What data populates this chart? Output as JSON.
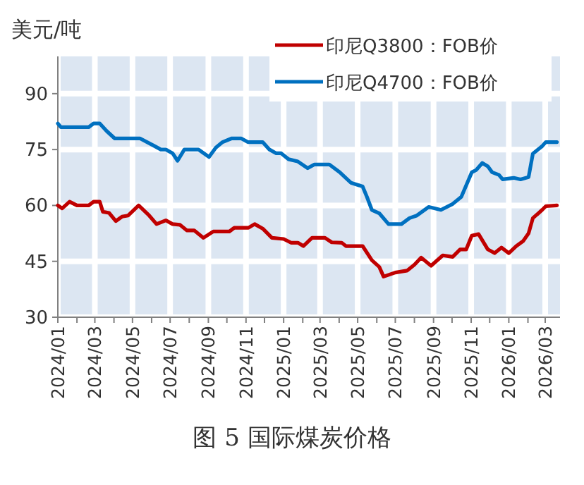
{
  "chart_data": {
    "type": "line",
    "ylabel": "美元/吨",
    "annotations": [
      "图 5 国际煤炭价格"
    ],
    "xlim": [
      "2024-01-01",
      "2026-03-25"
    ],
    "ylim": [
      30,
      100
    ],
    "yticks": [
      30,
      45,
      60,
      75,
      90
    ],
    "xticks": [
      {
        "value": "2024-01-01",
        "label": "2024/01"
      },
      {
        "value": "2024-02-01",
        "label": null
      },
      {
        "value": "2024-03-01",
        "label": "2024/03"
      },
      {
        "value": "2024-04-01",
        "label": null
      },
      {
        "value": "2024-05-01",
        "label": "2024/05"
      },
      {
        "value": "2024-06-01",
        "label": null
      },
      {
        "value": "2024-07-01",
        "label": "2024/07"
      },
      {
        "value": "2024-08-01",
        "label": null
      },
      {
        "value": "2024-09-01",
        "label": "2024/09"
      },
      {
        "value": "2024-10-01",
        "label": null
      },
      {
        "value": "2024-11-01",
        "label": "2024/11"
      },
      {
        "value": "2024-12-01",
        "label": null
      },
      {
        "value": "2025-01-01",
        "label": "2025/01"
      },
      {
        "value": "2025-02-01",
        "label": null
      },
      {
        "value": "2025-03-01",
        "label": "2025/03"
      },
      {
        "value": "2025-04-01",
        "label": null
      },
      {
        "value": "2025-05-01",
        "label": "2025/05"
      },
      {
        "value": "2025-06-01",
        "label": null
      },
      {
        "value": "2025-07-01",
        "label": "2025/07"
      },
      {
        "value": "2025-08-01",
        "label": null
      },
      {
        "value": "2025-09-01",
        "label": "2025/09"
      },
      {
        "value": "2025-10-01",
        "label": null
      },
      {
        "value": "2025-11-01",
        "label": "2025/11"
      },
      {
        "value": "2025-12-01",
        "label": null
      },
      {
        "value": "2026-01-01",
        "label": "2026/01"
      },
      {
        "value": "2026-02-01",
        "label": null
      },
      {
        "value": "2026-03-01",
        "label": "2026/03"
      }
    ],
    "grid": true,
    "legend": "top right",
    "series": [
      {
        "name": "印尼Q3800：FOB价",
        "color": "#c00000",
        "x": [
          "2024-01-01",
          "2024-01-08",
          "2024-01-20",
          "2024-02-01",
          "2024-02-20",
          "2024-02-28",
          "2024-03-09",
          "2024-03-14",
          "2024-03-24",
          "2024-04-04",
          "2024-04-14",
          "2024-04-24",
          "2024-05-11",
          "2024-05-28",
          "2024-06-09",
          "2024-06-24",
          "2024-07-05",
          "2024-07-17",
          "2024-07-28",
          "2024-08-09",
          "2024-08-24",
          "2024-09-09",
          "2024-10-05",
          "2024-10-13",
          "2024-11-05",
          "2024-11-15",
          "2024-11-28",
          "2024-12-13",
          "2025-01-01",
          "2025-01-13",
          "2025-01-24",
          "2025-02-02",
          "2025-02-16",
          "2025-03-09",
          "2025-03-20",
          "2025-04-05",
          "2025-04-12",
          "2025-05-09",
          "2025-05-24",
          "2025-06-05",
          "2025-06-12",
          "2025-07-01",
          "2025-07-20",
          "2025-08-01",
          "2025-08-12",
          "2025-08-28",
          "2025-09-16",
          "2025-10-02",
          "2025-10-14",
          "2025-10-24",
          "2025-11-02",
          "2025-11-13",
          "2025-11-28",
          "2025-12-09",
          "2025-12-20",
          "2026-01-01",
          "2026-01-13",
          "2026-01-24",
          "2026-02-02",
          "2026-02-09",
          "2026-02-24",
          "2026-03-02",
          "2026-03-20"
        ],
        "values": [
          60,
          59.2,
          61,
          60,
          60,
          61,
          61,
          58.3,
          58,
          55.8,
          57,
          57.3,
          60,
          57.3,
          55,
          56,
          55,
          54.8,
          53.3,
          53.3,
          51.3,
          53,
          53,
          54,
          54,
          55,
          53.8,
          51.3,
          51,
          50,
          50,
          49.1,
          51.3,
          51.3,
          50.1,
          50,
          49.1,
          49.1,
          45.3,
          43.5,
          40.9,
          42,
          42.5,
          44.1,
          46,
          43.8,
          46.6,
          46.2,
          48.2,
          48.2,
          51.9,
          52.3,
          48.2,
          47.2,
          48.7,
          47.2,
          49.1,
          50.4,
          52.5,
          56.6,
          58.8,
          59.8,
          60
        ]
      },
      {
        "name": "印尼Q4700：FOB价",
        "color": "#0070c0",
        "x": [
          "2024-01-01",
          "2024-01-06",
          "2024-02-20",
          "2024-02-28",
          "2024-03-09",
          "2024-03-20",
          "2024-04-02",
          "2024-05-13",
          "2024-06-05",
          "2024-06-16",
          "2024-06-24",
          "2024-07-05",
          "2024-07-13",
          "2024-07-24",
          "2024-08-16",
          "2024-09-02",
          "2024-09-13",
          "2024-09-24",
          "2024-10-09",
          "2024-10-24",
          "2024-11-04",
          "2024-11-28",
          "2024-12-09",
          "2024-12-20",
          "2024-12-28",
          "2025-01-09",
          "2025-01-24",
          "2025-02-09",
          "2025-02-20",
          "2025-03-16",
          "2025-04-02",
          "2025-04-20",
          "2025-05-09",
          "2025-05-16",
          "2025-05-24",
          "2025-06-05",
          "2025-06-20",
          "2025-07-11",
          "2025-07-24",
          "2025-08-05",
          "2025-08-24",
          "2025-09-13",
          "2025-10-02",
          "2025-10-16",
          "2025-11-02",
          "2025-11-09",
          "2025-11-19",
          "2025-11-28",
          "2025-12-05",
          "2025-12-16",
          "2025-12-22",
          "2026-01-09",
          "2026-01-20",
          "2026-02-02",
          "2026-02-09",
          "2026-02-24",
          "2026-03-02",
          "2026-03-20"
        ],
        "values": [
          82,
          81,
          81,
          82,
          82,
          80,
          78,
          78,
          76,
          75,
          75,
          74,
          72,
          75,
          75,
          73,
          75.5,
          77,
          78,
          78,
          77,
          77,
          75,
          74,
          74,
          72.4,
          71.8,
          70,
          71,
          71,
          68.9,
          66.1,
          65.1,
          62.3,
          58.8,
          57.9,
          55,
          55,
          56.6,
          57.3,
          59.6,
          58.8,
          60.4,
          62.3,
          68.9,
          69.5,
          71.4,
          70.5,
          68.9,
          68.2,
          67,
          67.4,
          67,
          67.6,
          73.9,
          75.9,
          77,
          77
        ]
      }
    ]
  }
}
